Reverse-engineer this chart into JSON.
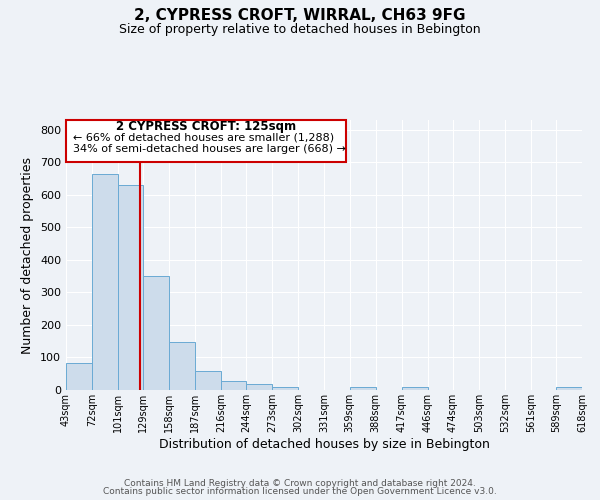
{
  "title": "2, CYPRESS CROFT, WIRRAL, CH63 9FG",
  "subtitle": "Size of property relative to detached houses in Bebington",
  "xlabel": "Distribution of detached houses by size in Bebington",
  "ylabel": "Number of detached properties",
  "bar_edges": [
    43,
    72,
    101,
    129,
    158,
    187,
    216,
    244,
    273,
    302,
    331,
    359,
    388,
    417,
    446,
    474,
    503,
    532,
    561,
    589,
    618
  ],
  "bar_heights": [
    82,
    663,
    630,
    350,
    148,
    58,
    27,
    18,
    8,
    0,
    0,
    8,
    0,
    10,
    0,
    0,
    0,
    0,
    0,
    8
  ],
  "bar_color": "#cddceb",
  "bar_edge_color": "#6aaad4",
  "property_line_x": 125,
  "property_line_color": "#cc0000",
  "annotation_box_color": "#cc0000",
  "annotation_text_line1": "2 CYPRESS CROFT: 125sqm",
  "annotation_text_line2": "← 66% of detached houses are smaller (1,288)",
  "annotation_text_line3": "34% of semi-detached houses are larger (668) →",
  "ylim": [
    0,
    830
  ],
  "xlim": [
    43,
    618
  ],
  "tick_labels": [
    "43sqm",
    "72sqm",
    "101sqm",
    "129sqm",
    "158sqm",
    "187sqm",
    "216sqm",
    "244sqm",
    "273sqm",
    "302sqm",
    "331sqm",
    "359sqm",
    "388sqm",
    "417sqm",
    "446sqm",
    "474sqm",
    "503sqm",
    "532sqm",
    "561sqm",
    "589sqm",
    "618sqm"
  ],
  "footer_line1": "Contains HM Land Registry data © Crown copyright and database right 2024.",
  "footer_line2": "Contains public sector information licensed under the Open Government Licence v3.0.",
  "background_color": "#eef2f7",
  "grid_color": "#ffffff",
  "title_fontsize": 11,
  "subtitle_fontsize": 9,
  "axis_label_fontsize": 9,
  "tick_fontsize": 7,
  "footer_fontsize": 6.5,
  "ytick_fontsize": 8
}
